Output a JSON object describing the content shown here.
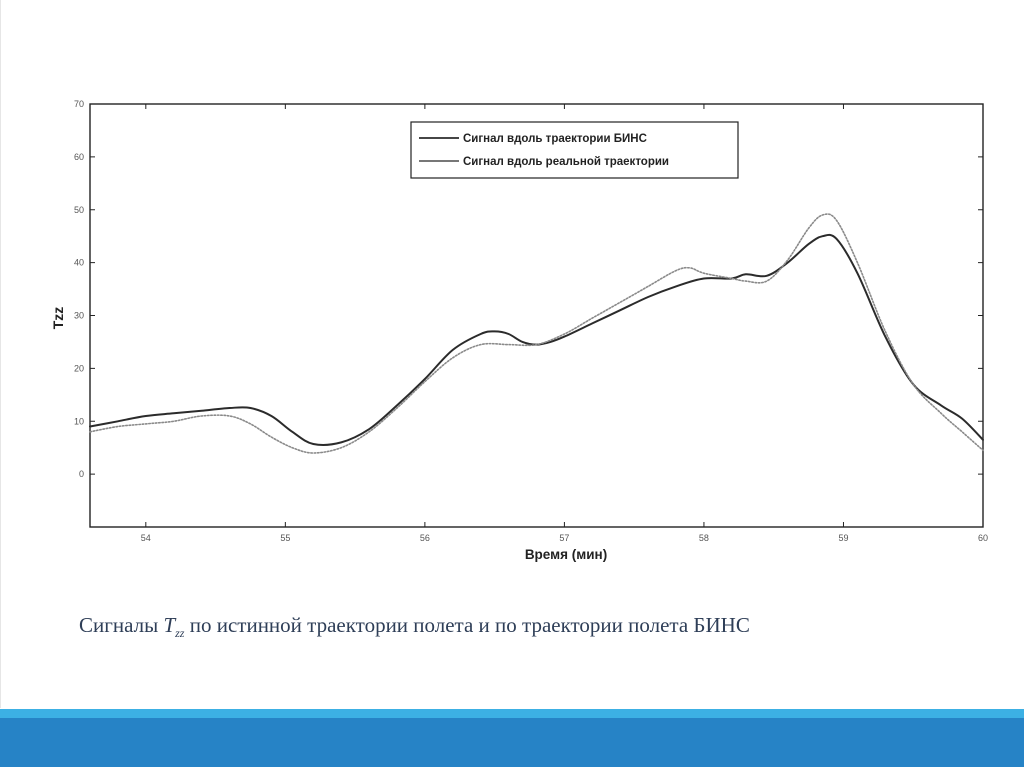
{
  "caption": {
    "prefix": "Сигналы ",
    "symbol": "T",
    "subscript": "zz",
    "suffix": " по истинной траектории полета и по траектории полета БИНС"
  },
  "colors": {
    "series_bins": "#2b2b2b",
    "series_real": "#8a8a8a",
    "footer_light": "#3cb0e4",
    "footer_dark": "#2683c6",
    "caption": "#2e3e57"
  },
  "chart_data": {
    "type": "line",
    "xlabel": "Время (мин)",
    "ylabel": "Tzz",
    "xlim": [
      53.6,
      60
    ],
    "ylim": [
      -10,
      70
    ],
    "xticks": [
      54,
      55,
      56,
      57,
      58,
      59,
      60
    ],
    "yticks": [
      0,
      10,
      20,
      30,
      40,
      50,
      60,
      70
    ],
    "grid": false,
    "legend_position": "top-center",
    "series": [
      {
        "name": "Сигнал вдоль траектории БИНС",
        "style": "solid",
        "x": [
          53.6,
          53.8,
          54.0,
          54.2,
          54.4,
          54.6,
          54.75,
          54.9,
          55.05,
          55.2,
          55.4,
          55.6,
          55.8,
          56.0,
          56.2,
          56.4,
          56.5,
          56.6,
          56.7,
          56.8,
          56.9,
          57.0,
          57.2,
          57.4,
          57.6,
          57.8,
          58.0,
          58.2,
          58.3,
          58.45,
          58.6,
          58.75,
          58.85,
          58.95,
          59.1,
          59.3,
          59.5,
          59.7,
          59.85,
          60.0
        ],
        "y": [
          9,
          10,
          11,
          11.5,
          12,
          12.5,
          12.5,
          11,
          8,
          5.7,
          6,
          8.5,
          13,
          18,
          23.5,
          26.5,
          27,
          26.5,
          25,
          24.5,
          25,
          26,
          28.5,
          31,
          33.5,
          35.5,
          37,
          37,
          37.8,
          37.5,
          40,
          43.5,
          45,
          44.5,
          38,
          26,
          17,
          13,
          10.5,
          6.5
        ]
      },
      {
        "name": "Сигнал вдоль реальной траектории",
        "style": "dotted",
        "x": [
          53.6,
          53.8,
          54.0,
          54.2,
          54.4,
          54.6,
          54.75,
          54.9,
          55.05,
          55.2,
          55.4,
          55.6,
          55.8,
          56.0,
          56.2,
          56.4,
          56.6,
          56.8,
          57.0,
          57.2,
          57.4,
          57.6,
          57.8,
          57.9,
          58.0,
          58.2,
          58.3,
          58.45,
          58.6,
          58.75,
          58.85,
          58.95,
          59.1,
          59.3,
          59.5,
          59.7,
          59.85,
          60.0
        ],
        "y": [
          8,
          9,
          9.5,
          10,
          11,
          11,
          9.5,
          7,
          5,
          4,
          5,
          8,
          12.5,
          17.5,
          22,
          24.5,
          24.5,
          24.5,
          26.5,
          29.5,
          32.5,
          35.5,
          38.5,
          39,
          38,
          37,
          36.5,
          36.5,
          40.5,
          46.5,
          49,
          48,
          40,
          27,
          17,
          11.5,
          8,
          4.5
        ]
      }
    ]
  }
}
